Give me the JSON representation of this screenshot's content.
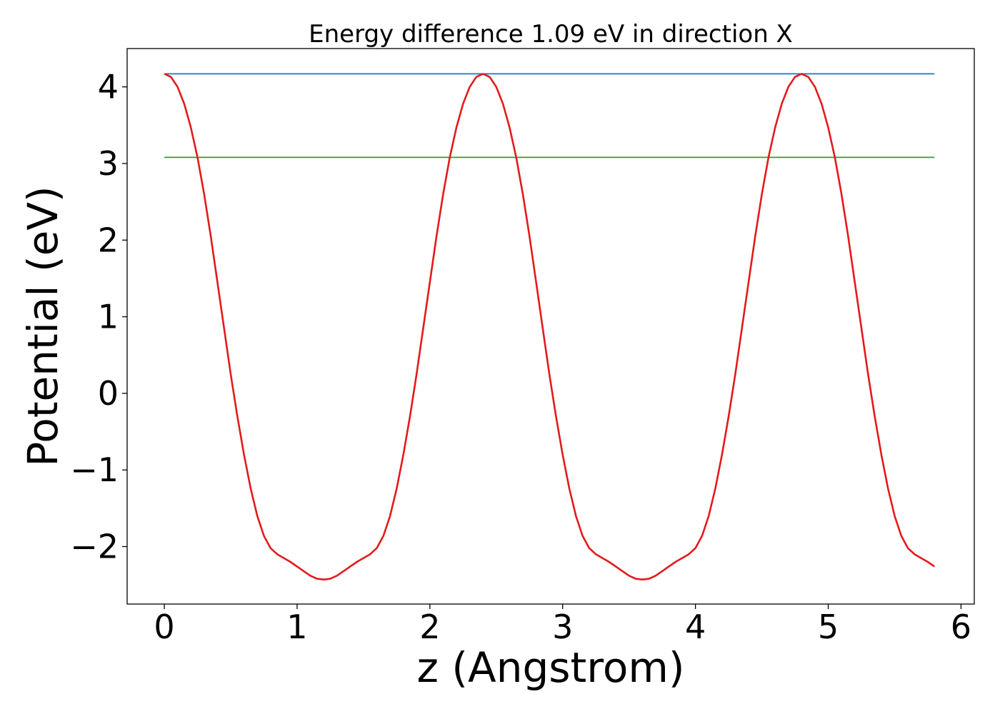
{
  "chart_data": {
    "type": "line",
    "title": "Energy difference 1.09 eV in direction X",
    "xlabel": "z (Angstrom)",
    "ylabel": "Potential (eV)",
    "xlim": [
      -0.28,
      6.1
    ],
    "ylim": [
      -2.75,
      4.5
    ],
    "xticks": [
      0,
      1,
      2,
      3,
      4,
      5,
      6
    ],
    "xtick_labels": [
      "0",
      "1",
      "2",
      "3",
      "4",
      "5",
      "6"
    ],
    "yticks": [
      -2,
      -1,
      0,
      1,
      2,
      3,
      4
    ],
    "ytick_labels": [
      "−2",
      "−1",
      "0",
      "1",
      "2",
      "3",
      "4"
    ],
    "grid": false,
    "series": [
      {
        "color": "#1f77b4",
        "x": [
          0,
          5.8
        ],
        "y": [
          4.17,
          4.17
        ]
      },
      {
        "color": "#2ca02c",
        "x": [
          0,
          5.8
        ],
        "y": [
          3.08,
          3.08
        ]
      },
      {
        "color": "#e31a1c",
        "x": [
          0.0,
          0.05,
          0.1,
          0.15,
          0.2,
          0.25,
          0.3,
          0.35,
          0.4,
          0.45,
          0.5,
          0.55,
          0.6,
          0.65,
          0.7,
          0.75,
          0.8,
          0.85,
          0.9,
          0.95,
          1.0,
          1.05,
          1.1,
          1.15,
          1.2,
          1.25,
          1.3,
          1.35,
          1.4,
          1.45,
          1.5,
          1.55,
          1.6,
          1.65,
          1.7,
          1.75,
          1.8,
          1.85,
          1.9,
          1.95,
          2.0,
          2.05,
          2.1,
          2.15,
          2.2,
          2.25,
          2.3,
          2.35,
          2.4,
          2.45,
          2.5,
          2.55,
          2.6,
          2.65,
          2.7,
          2.75,
          2.8,
          2.85,
          2.9,
          2.95,
          3.0,
          3.05,
          3.1,
          3.15,
          3.2,
          3.25,
          3.3,
          3.35,
          3.4,
          3.45,
          3.5,
          3.55,
          3.6,
          3.65,
          3.7,
          3.75,
          3.8,
          3.85,
          3.9,
          3.95,
          4.0,
          4.05,
          4.1,
          4.15,
          4.2,
          4.25,
          4.3,
          4.35,
          4.4,
          4.45,
          4.5,
          4.55,
          4.6,
          4.65,
          4.7,
          4.75,
          4.8,
          4.85,
          4.9,
          4.95,
          5.0,
          5.05,
          5.1,
          5.15,
          5.2,
          5.25,
          5.3,
          5.35,
          5.4,
          5.45,
          5.5,
          5.55,
          5.6,
          5.65,
          5.7,
          5.75,
          5.8
        ],
        "y": [
          4.17,
          4.13,
          4.0,
          3.78,
          3.47,
          3.08,
          2.6,
          2.05,
          1.45,
          0.85,
          0.25,
          -0.3,
          -0.8,
          -1.24,
          -1.6,
          -1.86,
          -2.02,
          -2.1,
          -2.15,
          -2.2,
          -2.26,
          -2.32,
          -2.38,
          -2.42,
          -2.43,
          -2.42,
          -2.38,
          -2.32,
          -2.26,
          -2.2,
          -2.15,
          -2.1,
          -2.02,
          -1.86,
          -1.6,
          -1.24,
          -0.8,
          -0.3,
          0.25,
          0.85,
          1.45,
          2.05,
          2.6,
          3.08,
          3.47,
          3.78,
          4.0,
          4.13,
          4.17,
          4.13,
          4.0,
          3.78,
          3.47,
          3.08,
          2.6,
          2.05,
          1.45,
          0.85,
          0.25,
          -0.3,
          -0.8,
          -1.24,
          -1.6,
          -1.86,
          -2.02,
          -2.1,
          -2.15,
          -2.2,
          -2.26,
          -2.32,
          -2.38,
          -2.42,
          -2.43,
          -2.42,
          -2.38,
          -2.32,
          -2.26,
          -2.2,
          -2.15,
          -2.1,
          -2.02,
          -1.86,
          -1.6,
          -1.24,
          -0.8,
          -0.3,
          0.25,
          0.85,
          1.45,
          2.05,
          2.6,
          3.08,
          3.47,
          3.78,
          4.0,
          4.13,
          4.17,
          4.13,
          4.0,
          3.78,
          3.47,
          3.08,
          2.6,
          2.05,
          1.45,
          0.85,
          0.25,
          -0.3,
          -0.8,
          -1.24,
          -1.6,
          -1.86,
          -2.02,
          -2.1,
          -2.15,
          -2.2,
          -2.26
        ]
      }
    ]
  }
}
